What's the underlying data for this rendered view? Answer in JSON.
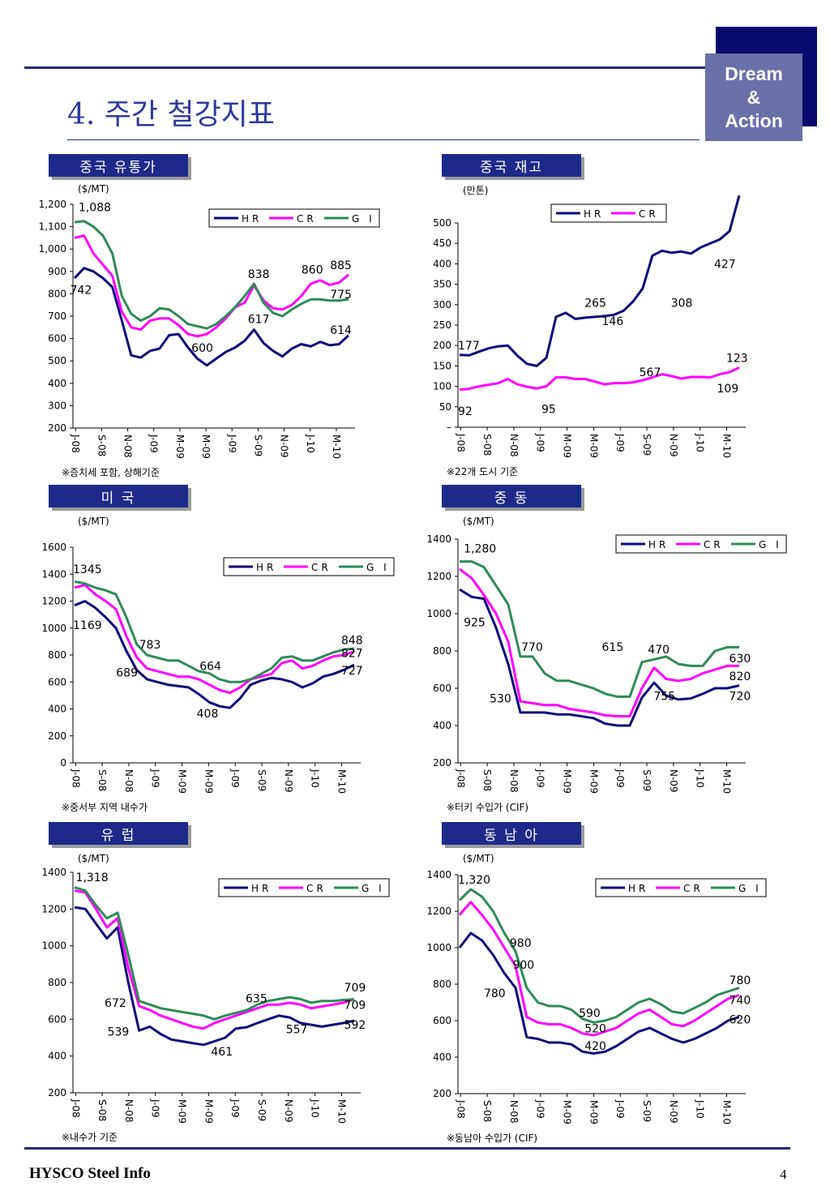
{
  "header": {
    "title": "4. 주간 철강지표",
    "logo_lines": [
      "Dream",
      "&",
      "Action"
    ]
  },
  "footer": {
    "left": "HYSCO Steel Info",
    "page": "4"
  },
  "colors": {
    "HR": "#0a0a7a",
    "CR": "#ff00ff",
    "GI": "#2e8b57",
    "title_box": "#1e2a8a"
  },
  "x_ticks": [
    "J-08",
    "S-08",
    "N-08",
    "J-09",
    "M-09",
    "M-09",
    "J-09",
    "S-09",
    "N-09",
    "J-10",
    "M-10"
  ],
  "chart_data": [
    {
      "id": "china-price",
      "type": "line",
      "title": "중국 유통가",
      "unit": "($/MT)",
      "note": "※증치세 포함, 상해기준",
      "ylim": [
        200,
        1200
      ],
      "yticks": [
        200,
        300,
        400,
        500,
        600,
        700,
        800,
        900,
        1000,
        1100,
        1200
      ],
      "ytick_labels": [
        "200",
        "300",
        "400",
        "500",
        "600",
        "700",
        "800",
        "900",
        "1,000",
        "1,100",
        "1,200"
      ],
      "x_ticks": [
        "J-08",
        "S-08",
        "N-08",
        "J-09",
        "M-09",
        "M-09",
        "J-09",
        "S-09",
        "N-09",
        "J-10",
        "M-10"
      ],
      "series": [
        {
          "name": "HR",
          "values": [
            870,
            915,
            900,
            870,
            830,
            680,
            525,
            515,
            545,
            555,
            615,
            620,
            560,
            510,
            480,
            510,
            540,
            560,
            590,
            640,
            580,
            545,
            520,
            555,
            575,
            565,
            585,
            570,
            575,
            614
          ]
        },
        {
          "name": "CR",
          "values": [
            1050,
            1060,
            980,
            930,
            880,
            720,
            650,
            640,
            680,
            690,
            690,
            660,
            620,
            610,
            620,
            650,
            690,
            740,
            760,
            838,
            770,
            735,
            730,
            750,
            790,
            845,
            860,
            840,
            850,
            885
          ]
        },
        {
          "name": "GI",
          "values": [
            1120,
            1125,
            1100,
            1060,
            980,
            790,
            710,
            680,
            700,
            735,
            730,
            700,
            665,
            655,
            645,
            665,
            700,
            740,
            790,
            845,
            760,
            715,
            700,
            730,
            755,
            775,
            775,
            770,
            770,
            775
          ]
        }
      ],
      "annotations": [
        "1,088",
        "742",
        "600",
        "617",
        "838",
        "860",
        "885",
        "775",
        "614"
      ]
    },
    {
      "id": "china-inventory",
      "type": "line",
      "title": "중국 재고",
      "unit": "(만톤)",
      "note": "※22개 도시 기준",
      "ylim": [
        0,
        500
      ],
      "yticks": [
        0,
        50,
        100,
        150,
        200,
        250,
        300,
        350,
        400,
        450,
        500
      ],
      "ytick_labels": [
        "–",
        "50",
        "100",
        "150",
        "200",
        "250",
        "300",
        "350",
        "400",
        "450",
        "500"
      ],
      "x_ticks": [
        "J-08",
        "S-08",
        "N-08",
        "J-09",
        "M-09",
        "M-09",
        "J-09",
        "S-09",
        "N-09",
        "J-10",
        "M-10"
      ],
      "series": [
        {
          "name": "HR",
          "values": [
            177,
            176,
            185,
            193,
            198,
            200,
            175,
            155,
            150,
            170,
            270,
            280,
            265,
            268,
            270,
            272,
            275,
            285,
            308,
            340,
            420,
            432,
            427,
            430,
            425,
            440,
            450,
            460,
            480,
            567
          ]
        },
        {
          "name": "CR",
          "values": [
            92,
            94,
            100,
            104,
            108,
            118,
            105,
            99,
            95,
            100,
            122,
            122,
            118,
            118,
            112,
            105,
            108,
            108,
            110,
            115,
            122,
            130,
            125,
            119,
            123,
            123,
            122,
            130,
            135,
            146
          ]
        }
      ],
      "annotations": [
        "177",
        "92",
        "95",
        "265",
        "308",
        "427",
        "567",
        "109",
        "123",
        "146"
      ]
    },
    {
      "id": "usa",
      "type": "line",
      "title": "미 국",
      "unit": "($/MT)",
      "note": "※중서부 지역 내수가",
      "ylim": [
        0,
        1600
      ],
      "yticks": [
        0,
        200,
        400,
        600,
        800,
        1000,
        1200,
        1400,
        1600
      ],
      "ytick_labels": [
        "0",
        "200",
        "400",
        "600",
        "800",
        "1000",
        "1200",
        "1400",
        "1600"
      ],
      "x_ticks": [
        "J-08",
        "S-08",
        "N-08",
        "J-09",
        "M-09",
        "M-09",
        "J-09",
        "S-09",
        "N-09",
        "J-10",
        "M-10"
      ],
      "series": [
        {
          "name": "HR",
          "values": [
            1169,
            1200,
            1150,
            1080,
            1000,
            830,
            689,
            620,
            600,
            580,
            570,
            560,
            510,
            450,
            420,
            408,
            480,
            580,
            610,
            630,
            620,
            600,
            560,
            590,
            640,
            660,
            690,
            727
          ]
        },
        {
          "name": "CR",
          "values": [
            1300,
            1320,
            1250,
            1200,
            1140,
            940,
            783,
            700,
            680,
            660,
            640,
            640,
            620,
            580,
            540,
            520,
            560,
            620,
            640,
            660,
            740,
            760,
            700,
            720,
            760,
            790,
            800,
            827
          ]
        },
        {
          "name": "GI",
          "values": [
            1345,
            1330,
            1300,
            1280,
            1250,
            1080,
            880,
            800,
            780,
            760,
            760,
            720,
            680,
            664,
            620,
            600,
            600,
            620,
            660,
            700,
            780,
            790,
            760,
            760,
            790,
            820,
            840,
            848
          ]
        }
      ],
      "annotations": [
        "1345",
        "1169",
        "783",
        "689",
        "664",
        "408",
        "848",
        "827",
        "727"
      ]
    },
    {
      "id": "middle-east",
      "type": "line",
      "title": "중 동",
      "unit": "($/MT)",
      "note": "※터키 수입가 (CIF)",
      "ylim": [
        200,
        1400
      ],
      "yticks": [
        200,
        400,
        600,
        800,
        1000,
        1200,
        1400
      ],
      "ytick_labels": [
        "200",
        "400",
        "600",
        "800",
        "1000",
        "1200",
        "1400"
      ],
      "x_ticks": [
        "J-08",
        "S-08",
        "N-08",
        "J-09",
        "M-09",
        "M-09",
        "J-09",
        "S-09",
        "N-09",
        "J-10",
        "M-10"
      ],
      "series": [
        {
          "name": "HR",
          "values": [
            1130,
            1090,
            1080,
            925,
            730,
            470,
            470,
            470,
            460,
            460,
            450,
            440,
            410,
            400,
            400,
            550,
            630,
            560,
            540,
            545,
            570,
            600,
            600,
            615
          ]
        },
        {
          "name": "CR",
          "values": [
            1240,
            1190,
            1100,
            1000,
            850,
            530,
            520,
            510,
            510,
            490,
            480,
            470,
            455,
            450,
            450,
            600,
            710,
            650,
            640,
            650,
            680,
            700,
            720,
            720
          ]
        },
        {
          "name": "GI",
          "values": [
            1280,
            1280,
            1250,
            1150,
            1050,
            770,
            770,
            680,
            640,
            640,
            620,
            600,
            570,
            555,
            555,
            740,
            755,
            770,
            730,
            720,
            720,
            800,
            820,
            820
          ]
        }
      ],
      "annotations": [
        "1,280",
        "925",
        "770",
        "530",
        "470",
        "755",
        "630",
        "820",
        "720",
        "615"
      ]
    },
    {
      "id": "europe",
      "type": "line",
      "title": "유 럽",
      "unit": "($/MT)",
      "note": "※내수가 기준",
      "ylim": [
        200,
        1400
      ],
      "yticks": [
        200,
        400,
        600,
        800,
        1000,
        1200,
        1400
      ],
      "ytick_labels": [
        "200",
        "400",
        "600",
        "800",
        "1000",
        "1200",
        "1400"
      ],
      "x_ticks": [
        "J-08",
        "S-08",
        "N-08",
        "J-09",
        "M-09",
        "M-09",
        "J-09",
        "S-09",
        "N-09",
        "J-10",
        "M-10"
      ],
      "series": [
        {
          "name": "HR",
          "values": [
            1210,
            1200,
            1120,
            1040,
            1100,
            800,
            539,
            560,
            520,
            490,
            480,
            470,
            461,
            480,
            500,
            550,
            557,
            580,
            600,
            620,
            610,
            580,
            570,
            560,
            570,
            580,
            592
          ]
        },
        {
          "name": "CR",
          "values": [
            1300,
            1290,
            1200,
            1100,
            1150,
            880,
            672,
            650,
            620,
            600,
            580,
            560,
            550,
            580,
            600,
            620,
            640,
            660,
            680,
            680,
            690,
            680,
            660,
            670,
            680,
            690,
            709
          ]
        },
        {
          "name": "GI",
          "values": [
            1318,
            1300,
            1220,
            1150,
            1180,
            950,
            700,
            680,
            660,
            650,
            640,
            630,
            620,
            600,
            620,
            635,
            650,
            680,
            700,
            710,
            720,
            710,
            690,
            700,
            700,
            705,
            709
          ]
        }
      ],
      "annotations": [
        "1,318",
        "672",
        "539",
        "461",
        "635",
        "557",
        "709",
        "709",
        "592"
      ]
    },
    {
      "id": "southeast-asia",
      "type": "line",
      "title": "동 남 아",
      "unit": "($/MT)",
      "note": "※동남아 수입가 (CIF)",
      "ylim": [
        200,
        1400
      ],
      "yticks": [
        200,
        400,
        600,
        800,
        1000,
        1200,
        1400
      ],
      "ytick_labels": [
        "200",
        "400",
        "600",
        "800",
        "1000",
        "1200",
        "1400"
      ],
      "x_ticks": [
        "J-08",
        "S-08",
        "N-08",
        "J-09",
        "M-09",
        "M-09",
        "J-09",
        "S-09",
        "N-09",
        "J-10",
        "M-10"
      ],
      "series": [
        {
          "name": "HR",
          "values": [
            1000,
            1080,
            1040,
            960,
            860,
            780,
            510,
            500,
            480,
            480,
            470,
            430,
            420,
            430,
            460,
            500,
            540,
            560,
            530,
            500,
            480,
            500,
            530,
            560,
            600,
            620
          ]
        },
        {
          "name": "CR",
          "values": [
            1180,
            1250,
            1180,
            1100,
            1000,
            900,
            620,
            590,
            580,
            580,
            560,
            530,
            520,
            540,
            560,
            600,
            640,
            660,
            620,
            580,
            570,
            600,
            640,
            680,
            720,
            740
          ]
        },
        {
          "name": "GI",
          "values": [
            1260,
            1320,
            1280,
            1200,
            1080,
            980,
            780,
            700,
            680,
            680,
            660,
            610,
            590,
            600,
            620,
            660,
            700,
            720,
            690,
            650,
            640,
            670,
            700,
            740,
            760,
            780
          ]
        }
      ],
      "annotations": [
        "1,320",
        "980",
        "900",
        "780",
        "590",
        "520",
        "420",
        "780",
        "740",
        "620"
      ]
    }
  ]
}
